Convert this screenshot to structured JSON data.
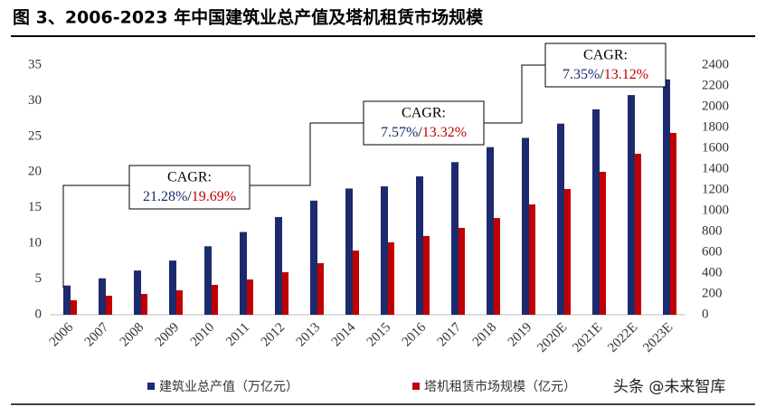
{
  "chart_data": {
    "type": "bar",
    "title": "图 3、2006-2023 年中国建筑业总产值及塔机租赁市场规模",
    "categories": [
      "2006",
      "2007",
      "2008",
      "2009",
      "2010",
      "2011",
      "2012",
      "2013",
      "2014",
      "2015",
      "2016",
      "2017",
      "2018",
      "2019",
      "2020E",
      "2021E",
      "2022E",
      "2023E"
    ],
    "series": [
      {
        "name": "建筑业总产值（万亿元）",
        "color": "#1c2a6e",
        "values": [
          4.1,
          5.1,
          6.2,
          7.6,
          9.6,
          11.6,
          13.7,
          16.0,
          17.7,
          18.0,
          19.4,
          21.4,
          23.5,
          24.8,
          26.8,
          28.8,
          30.8,
          33.0
        ]
      },
      {
        "name": "塔机租赁市场规模（亿元）",
        "color": "#c00000",
        "axis": "y2",
        "values": [
          139,
          183,
          200,
          235,
          287,
          339,
          409,
          496,
          617,
          696,
          757,
          835,
          930,
          1061,
          1209,
          1374,
          1548,
          1748
        ]
      }
    ],
    "ylim": [
      0,
      35
    ],
    "yticks": [
      0,
      5,
      10,
      15,
      20,
      25,
      30,
      35
    ],
    "y2lim": [
      0,
      2400
    ],
    "y2ticks": [
      0,
      200,
      400,
      600,
      800,
      1000,
      1200,
      1400,
      1600,
      1800,
      2000,
      2200,
      2400
    ],
    "grid": false,
    "annotations": [
      {
        "heading": "CAGR:",
        "rate_1": "21.28%",
        "separator": "/",
        "rate_2": "19.69%"
      },
      {
        "heading": "CAGR:",
        "rate_1": "7.57%",
        "separator": "/",
        "rate_2": "13.32%"
      },
      {
        "heading": "CAGR:",
        "rate_1": "7.35%",
        "separator": "/",
        "rate_2": "13.12%"
      }
    ],
    "watermark": "头条 @未来智库"
  }
}
